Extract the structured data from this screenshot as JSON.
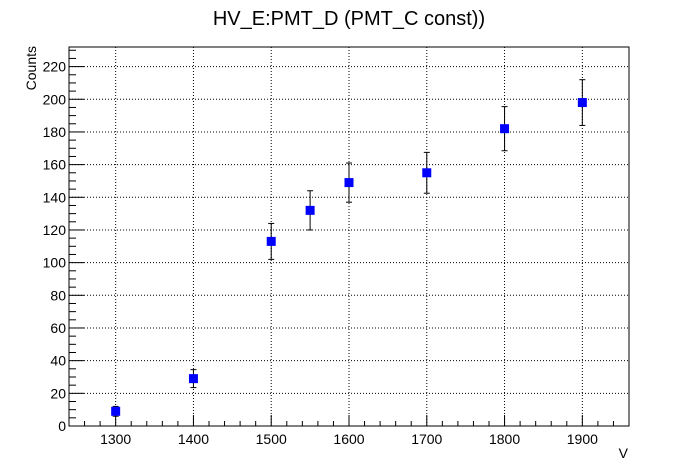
{
  "chart_data": {
    "type": "scatter",
    "title": "HV_E:PMT_D (PMT_C const))",
    "xlabel": "V",
    "ylabel": "Counts",
    "xlim": [
      1240,
      1960
    ],
    "ylim": [
      0,
      232
    ],
    "x_ticks": [
      1300,
      1400,
      1500,
      1600,
      1700,
      1800,
      1900
    ],
    "y_ticks": [
      0,
      20,
      40,
      60,
      80,
      100,
      120,
      140,
      160,
      180,
      200,
      220
    ],
    "grid": true,
    "legend": "none",
    "series": [
      {
        "marker": "square",
        "color": "#0000ff",
        "x": [
          1300,
          1400,
          1500,
          1550,
          1600,
          1700,
          1800,
          1900
        ],
        "y": [
          9,
          29,
          113,
          132,
          149,
          155,
          182,
          198
        ],
        "yerr": [
          3,
          5.5,
          11,
          12,
          12,
          12.5,
          13.5,
          14
        ]
      }
    ]
  }
}
